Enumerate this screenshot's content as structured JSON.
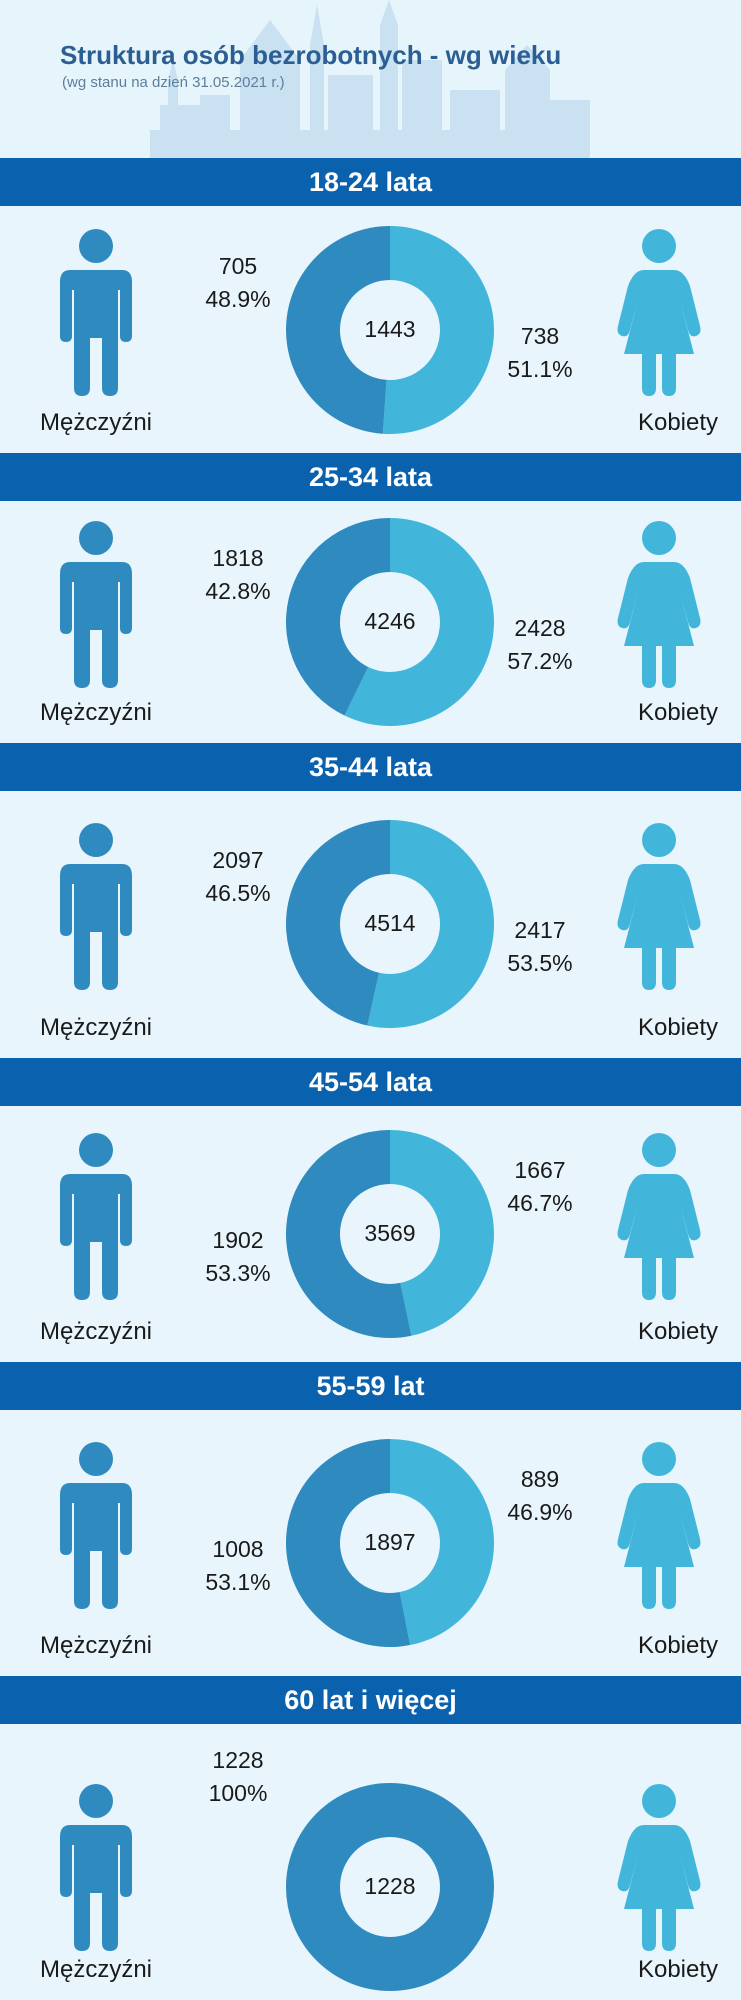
{
  "title": "Struktura osób bezrobotnych - wg wieku",
  "subtitle": "(wg stanu na dzień 31.05.2021 r.)",
  "labels": {
    "men": "Mężczyźni",
    "women": "Kobiety"
  },
  "colors": {
    "men": "#2f8ac0",
    "women": "#41b6da",
    "band": "#0a61ad",
    "title": "#2b5f93"
  },
  "chart_data": {
    "type": "pie",
    "title": "Struktura osób bezrobotnych - wg wieku",
    "series_names": [
      "Mężczyźni",
      "Kobiety"
    ],
    "groups": [
      {
        "label": "18-24 lata",
        "total": "1443",
        "men_value": "705",
        "men_pct": "48.9%",
        "women_value": "738",
        "women_pct": "51.1%",
        "men_share": 48.9,
        "women_share": 51.1
      },
      {
        "label": "25-34 lata",
        "total": "4246",
        "men_value": "1818",
        "men_pct": "42.8%",
        "women_value": "2428",
        "women_pct": "57.2%",
        "men_share": 42.8,
        "women_share": 57.2
      },
      {
        "label": "35-44 lata",
        "total": "4514",
        "men_value": "2097",
        "men_pct": "46.5%",
        "women_value": "2417",
        "women_pct": "53.5%",
        "men_share": 46.5,
        "women_share": 53.5
      },
      {
        "label": "45-54 lata",
        "total": "3569",
        "men_value": "1902",
        "men_pct": "53.3%",
        "women_value": "1667",
        "women_pct": "46.7%",
        "men_share": 53.3,
        "women_share": 46.7
      },
      {
        "label": "55-59 lat",
        "total": "1897",
        "men_value": "1008",
        "men_pct": "53.1%",
        "women_value": "889",
        "women_pct": "46.9%",
        "men_share": 53.1,
        "women_share": 46.9
      },
      {
        "label": "60 lat i więcej",
        "total": "1228",
        "men_value": "1228",
        "men_pct": "100%",
        "women_value": null,
        "women_pct": null,
        "men_share": 100,
        "women_share": 0
      }
    ]
  }
}
